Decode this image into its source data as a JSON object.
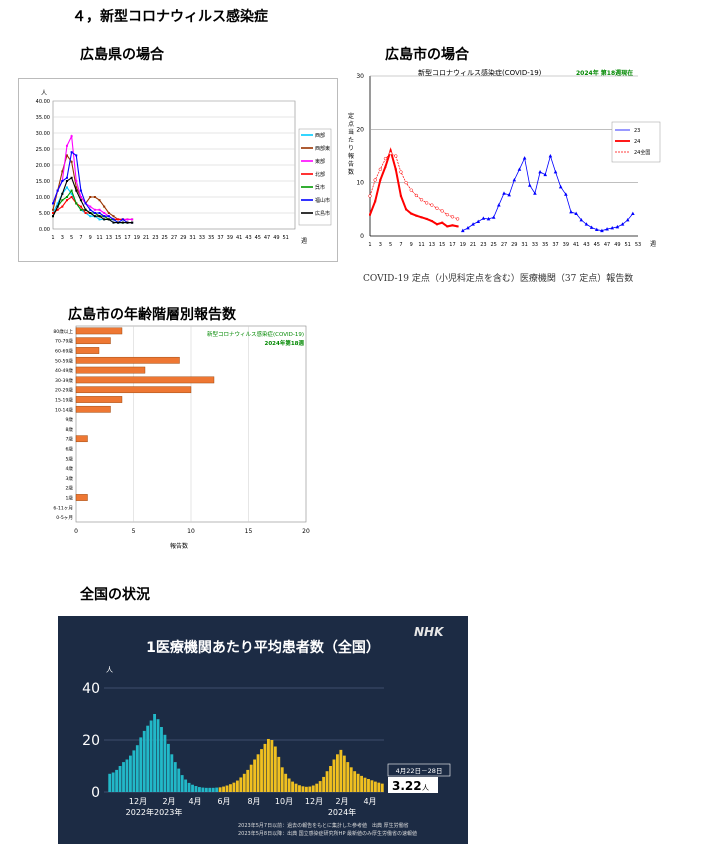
{
  "section_title": "４，新型コロナウィルス感染症",
  "headings": {
    "pref": "広島県の場合",
    "city": "広島市の場合",
    "age": "広島市の年齢階層別報告数",
    "national": "全国の状況"
  },
  "chart_data": [
    {
      "id": "pref",
      "type": "line",
      "ylabel": "人",
      "xlabel": "週",
      "ylim": [
        0,
        40
      ],
      "yticks": [
        "0.00",
        "5.00",
        "10.00",
        "15.00",
        "20.00",
        "25.00",
        "30.00",
        "35.00",
        "40.00"
      ],
      "xticks": [
        "1",
        "3",
        "5",
        "7",
        "9",
        "11",
        "13",
        "15",
        "17",
        "19",
        "21",
        "23",
        "25",
        "27",
        "29",
        "31",
        "33",
        "35",
        "37",
        "39",
        "41",
        "43",
        "45",
        "47",
        "49",
        "51"
      ],
      "x": [
        1,
        2,
        3,
        4,
        5,
        6,
        7,
        8,
        9,
        10,
        11,
        12,
        13,
        14,
        15,
        16,
        17,
        18
      ],
      "series": [
        {
          "name": "西部",
          "color": "#00ccff",
          "values": [
            5,
            8,
            11,
            13,
            11,
            8,
            6,
            5,
            4,
            4,
            3,
            3,
            3,
            2,
            2,
            2,
            2,
            2
          ]
        },
        {
          "name": "西部東",
          "color": "#993300",
          "values": [
            6,
            12,
            18,
            23,
            21,
            13,
            10,
            8,
            10,
            10,
            9,
            7,
            5,
            4,
            3,
            3,
            3,
            3
          ]
        },
        {
          "name": "東部",
          "color": "#ff00ff",
          "values": [
            8,
            12,
            15,
            26,
            29,
            15,
            10,
            8,
            7,
            6,
            6,
            5,
            4,
            3,
            3,
            3,
            3,
            3
          ]
        },
        {
          "name": "北部",
          "color": "#ff0000",
          "values": [
            5,
            6,
            7,
            9,
            10,
            8,
            7,
            5,
            5,
            5,
            4,
            4,
            3,
            3,
            3,
            3,
            2,
            2
          ]
        },
        {
          "name": "呉市",
          "color": "#009900",
          "values": [
            4,
            7,
            9,
            10,
            12,
            8,
            6,
            6,
            5,
            5,
            4,
            4,
            3,
            3,
            2,
            2,
            2,
            2
          ]
        },
        {
          "name": "福山市",
          "color": "#0000ff",
          "values": [
            8,
            12,
            15,
            16,
            24,
            23,
            12,
            8,
            6,
            5,
            5,
            4,
            4,
            3,
            2,
            3,
            2,
            2
          ]
        },
        {
          "name": "広島市",
          "color": "#000000",
          "values": [
            4,
            7,
            11,
            15,
            16,
            12,
            9,
            6,
            5,
            4,
            4,
            3,
            3,
            2,
            2,
            2,
            2,
            2
          ]
        }
      ]
    },
    {
      "id": "city",
      "type": "line",
      "title": "新型コロナウィルス感染症(COVID-19)",
      "subtitle": "2024年 第18週現在",
      "ylabel": "定点当たり報告数",
      "xlabel": "週",
      "ylim": [
        0,
        30
      ],
      "yticks": [
        "0",
        "10",
        "20",
        "30"
      ],
      "xticks": [
        "1",
        "3",
        "5",
        "7",
        "9",
        "11",
        "13",
        "15",
        "17",
        "19",
        "21",
        "23",
        "25",
        "27",
        "29",
        "31",
        "33",
        "35",
        "37",
        "39",
        "41",
        "43",
        "45",
        "47",
        "49",
        "51",
        "53"
      ],
      "series": [
        {
          "name": "23",
          "color": "#0000ff",
          "x": [
            19,
            20,
            21,
            22,
            23,
            24,
            25,
            26,
            27,
            28,
            29,
            30,
            31,
            32,
            33,
            34,
            35,
            36,
            37,
            38,
            39,
            40,
            41,
            42,
            43,
            44,
            45,
            46,
            47,
            48,
            49,
            50,
            51,
            52
          ],
          "values": [
            1.0,
            1.5,
            2.2,
            2.7,
            3.3,
            3.2,
            3.5,
            5.8,
            8.0,
            7.7,
            10.5,
            12.5,
            14.6,
            9.5,
            8.0,
            12.0,
            11.5,
            15.0,
            12.0,
            9.2,
            7.8,
            4.5,
            4.2,
            3.0,
            2.2,
            1.6,
            1.2,
            1.0,
            1.3,
            1.5,
            1.7,
            2.2,
            3.0,
            4.2
          ]
        },
        {
          "name": "24",
          "color": "#ff0000",
          "x": [
            1,
            2,
            3,
            4,
            5,
            6,
            7,
            8,
            9,
            10,
            11,
            12,
            13,
            14,
            15,
            16,
            17,
            18
          ],
          "values": [
            4.0,
            6.5,
            10.5,
            13.0,
            16.0,
            12.5,
            7.5,
            5.0,
            4.2,
            3.8,
            3.5,
            3.2,
            2.8,
            2.2,
            2.5,
            1.8,
            2.0,
            1.8
          ]
        },
        {
          "name": "24全国",
          "color": "#ff0000",
          "x": [
            1,
            2,
            3,
            4,
            5,
            6,
            7,
            8,
            9,
            10,
            11,
            12,
            13,
            14,
            15,
            16,
            17,
            18
          ],
          "values": [
            7.5,
            10.5,
            12.5,
            14.5,
            15.5,
            15.0,
            12.0,
            10.0,
            8.6,
            7.6,
            6.8,
            6.2,
            5.8,
            5.2,
            4.7,
            4.0,
            3.6,
            3.2
          ]
        }
      ],
      "caption": "COVID-19 定点（小児科定点を含む）医療機関（37 定点）報告数"
    },
    {
      "id": "age",
      "type": "bar",
      "title": "新型コロナウィルス感染症(COVID-19)",
      "subtitle": "2024年第18週",
      "xlabel": "報告数",
      "xlim": [
        0,
        20
      ],
      "xticks": [
        "0",
        "5",
        "10",
        "15",
        "20"
      ],
      "bar_color": "#ee7733",
      "categories": [
        "80歳以上",
        "70-79歳",
        "60-69歳",
        "50-59歳",
        "40-49歳",
        "30-39歳",
        "20-29歳",
        "15-19歳",
        "10-14歳",
        "9歳",
        "8歳",
        "7歳",
        "6歳",
        "5歳",
        "4歳",
        "3歳",
        "2歳",
        "1歳",
        "6-11ヶ月",
        "0-5ヶ月"
      ],
      "values": [
        4,
        3,
        2,
        9,
        6,
        12,
        10,
        4,
        3,
        0,
        0,
        1,
        0,
        0,
        0,
        0,
        0,
        1,
        0,
        0
      ]
    },
    {
      "id": "national",
      "type": "bar",
      "title": "1医療機関あたり平均患者数（全国）",
      "brand": "NHK",
      "ylabel": "人",
      "ylim": [
        0,
        40
      ],
      "yticks": [
        "0",
        "20",
        "40"
      ],
      "month_labels": [
        "12月",
        "2月",
        "4月",
        "6月",
        "8月",
        "10月",
        "12月",
        "2月",
        "4月"
      ],
      "year_labels": [
        "2022年2023年",
        "2024年"
      ],
      "callout_date": "4月22日－28日",
      "callout_value": "3.22",
      "callout_unit": "人",
      "notes": [
        "2023年5月7日以前：過去の報告をもとに集計した参考値　出典 厚生労働省",
        "2023年5月8日以降：出典 国立感染症研究所HP 最新値のみ厚生労働省の速報値"
      ],
      "series_colors": {
        "2022-2023": "#22b8c8",
        "2023-2024": "#f0c020"
      },
      "values_2022_2023": [
        7.0,
        7.5,
        8.5,
        10,
        11.5,
        12.5,
        14,
        16,
        18,
        21,
        23.5,
        25.5,
        27.5,
        30,
        28,
        25,
        22,
        18.5,
        14.5,
        11.5,
        9,
        6.5,
        4.8,
        3.5,
        2.8,
        2.3,
        1.9,
        1.7,
        1.6,
        1.6,
        1.6,
        1.7
      ],
      "values_2023_2024": [
        1.8,
        2.1,
        2.5,
        3.0,
        3.6,
        4.4,
        5.6,
        7,
        8.5,
        10.5,
        12.5,
        14.5,
        16.5,
        18.5,
        20.4,
        20,
        17.5,
        13.5,
        9.5,
        7,
        5.2,
        4.0,
        3.2,
        2.6,
        2.2,
        2.0,
        2.1,
        2.5,
        3.2,
        4.2,
        5.8,
        8,
        10,
        12.5,
        14.5,
        16.2,
        14,
        11.5,
        9.5,
        8,
        7,
        6.2,
        5.5,
        5,
        4.5,
        4.0,
        3.6,
        3.22
      ]
    }
  ]
}
